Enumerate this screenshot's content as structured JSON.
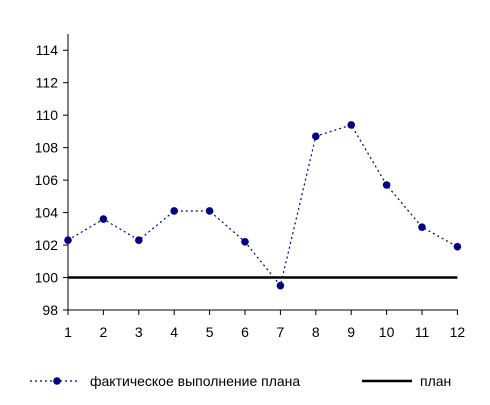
{
  "chart_data": {
    "type": "line",
    "title": "",
    "xlabel": "",
    "ylabel": "",
    "x": [
      1,
      2,
      3,
      4,
      5,
      6,
      7,
      8,
      9,
      10,
      11,
      12
    ],
    "x_tick_labels": [
      "1",
      "2",
      "3",
      "4",
      "5",
      "6",
      "7",
      "8",
      "9",
      "10",
      "11",
      "12"
    ],
    "ylim": [
      98,
      115
    ],
    "y_ticks": [
      98,
      100,
      102,
      104,
      106,
      108,
      110,
      112,
      114
    ],
    "y_tick_labels": [
      "98",
      "100",
      "102",
      "104",
      "106",
      "108",
      "110",
      "112",
      "114"
    ],
    "grid": false,
    "legend_position": "bottom",
    "series": [
      {
        "name": "фактическое выполнение плана",
        "values": [
          102.3,
          103.6,
          102.3,
          104.1,
          104.1,
          102.2,
          99.5,
          108.7,
          109.4,
          105.7,
          103.1,
          101.9
        ],
        "color": "#000080",
        "line_style": "dotted",
        "marker": "circle"
      },
      {
        "name": "план",
        "values": [
          100,
          100,
          100,
          100,
          100,
          100,
          100,
          100,
          100,
          100,
          100,
          100
        ],
        "color": "#000000",
        "line_style": "solid",
        "marker": "none"
      }
    ]
  }
}
